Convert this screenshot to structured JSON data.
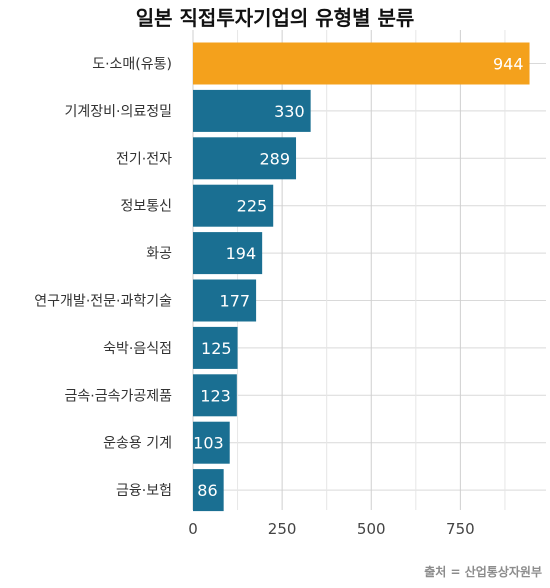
{
  "chart_data": {
    "type": "bar",
    "orientation": "horizontal",
    "title": "일본 직접투자기업의 유형별 분류",
    "categories": [
      "도·소매(유통)",
      "기계장비·의료정밀",
      "전기·전자",
      "정보통신",
      "화공",
      "연구개발·전문·과학기술",
      "숙박·음식점",
      "금속·금속가공제품",
      "운송용 기계",
      "금융·보험"
    ],
    "values": [
      944,
      330,
      289,
      225,
      194,
      177,
      125,
      123,
      103,
      86
    ],
    "xlim": [
      0,
      1000
    ],
    "xticks": [
      0,
      250,
      500,
      750
    ],
    "xlabel": "",
    "ylabel": "",
    "grid": true,
    "colors": {
      "highlight": "#f4a11c",
      "default": "#1a6f92"
    }
  },
  "source": "출처 = 산업통상자원부"
}
